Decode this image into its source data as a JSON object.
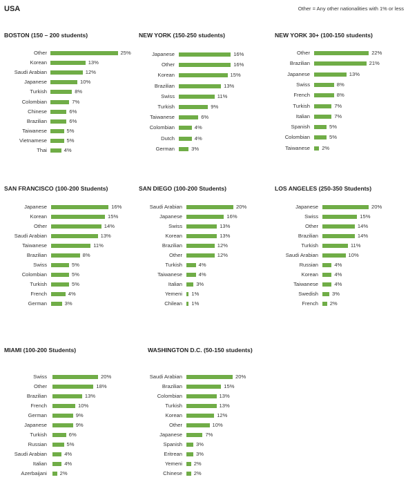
{
  "page": {
    "title": "USA",
    "note": "Other = Any other nationalities with 1% or less"
  },
  "chart_data": [
    {
      "type": "bar",
      "title": "BOSTON (150 – 200 students)",
      "categories": [
        "Other",
        "Korean",
        "Saudi Arabian",
        "Japanese",
        "Turkish",
        "Colombian",
        "Chinese",
        "Brazilian",
        "Taiwanese",
        "Vietnamese",
        "Thai"
      ],
      "values": [
        25,
        13,
        12,
        10,
        8,
        7,
        6,
        6,
        5,
        5,
        4
      ],
      "value_labels": [
        "25%",
        "13%",
        "12%",
        "10%",
        "8%",
        "7%",
        "6%",
        "6%",
        "5%",
        "5%",
        "4%"
      ],
      "orientation": "horizontal",
      "color": "#70ad47"
    },
    {
      "type": "bar",
      "title": "NEW YORK (150-250 students)",
      "categories": [
        "Japanese",
        "Other",
        "Korean",
        "Brazilian",
        "Swiss",
        "Turkish",
        "Taiwanese",
        "Colombian",
        "Dutch",
        "German"
      ],
      "values": [
        16,
        16,
        15,
        13,
        11,
        9,
        6,
        4,
        4,
        3
      ],
      "value_labels": [
        "16%",
        "16%",
        "15%",
        "13%",
        "11%",
        "9%",
        "6%",
        "4%",
        "4%",
        "3%"
      ],
      "orientation": "horizontal",
      "color": "#70ad47"
    },
    {
      "type": "bar",
      "title": "NEW YORK 30+ (100-150 students)",
      "categories": [
        "Other",
        "Brazilian",
        "Japanese",
        "Swiss",
        "French",
        "Turkish",
        "Italian",
        "Spanish",
        "Colombian",
        "Taiwanese"
      ],
      "values": [
        22,
        21,
        13,
        8,
        8,
        7,
        7,
        5,
        5,
        2
      ],
      "value_labels": [
        "22%",
        "21%",
        "13%",
        "8%",
        "8%",
        "7%",
        "7%",
        "5%",
        "5%",
        "2%"
      ],
      "orientation": "horizontal",
      "color": "#70ad47"
    },
    {
      "type": "bar",
      "title": "SAN FRANCISCO (100-200 Students)",
      "categories": [
        "Japanese",
        "Korean",
        "Other",
        "Saudi Arabian",
        "Taiwanese",
        "Brazilian",
        "Swiss",
        "Colombian",
        "Turkish",
        "French",
        "German"
      ],
      "values": [
        16,
        15,
        14,
        13,
        11,
        8,
        5,
        5,
        5,
        4,
        3
      ],
      "value_labels": [
        "16%",
        "15%",
        "14%",
        "13%",
        "11%",
        "8%",
        "5%",
        "5%",
        "5%",
        "4%",
        "3%"
      ],
      "orientation": "horizontal",
      "color": "#70ad47"
    },
    {
      "type": "bar",
      "title": "SAN DIEGO (100-200 Students)",
      "categories": [
        "Saudi Arabian",
        "Japanese",
        "Swiss",
        "Korean",
        "Brazilian",
        "Other",
        "Turkish",
        "Taiwanese",
        "Italian",
        "Yemeni",
        "Chilean"
      ],
      "values": [
        20,
        16,
        13,
        13,
        12,
        12,
        4,
        4,
        3,
        1,
        1
      ],
      "value_labels": [
        "20%",
        "16%",
        "13%",
        "13%",
        "12%",
        "12%",
        "4%",
        "4%",
        "3%",
        "1%",
        "1%"
      ],
      "orientation": "horizontal",
      "color": "#70ad47"
    },
    {
      "type": "bar",
      "title": "LOS ANGELES (250-350 Students)",
      "categories": [
        "Japanese",
        "Swiss",
        "Other",
        "Brazilian",
        "Turkish",
        "Saudi Arabian",
        "Russian",
        "Korean",
        "Taiwanese",
        "Swedish",
        "French"
      ],
      "values": [
        20,
        15,
        14,
        14,
        11,
        10,
        4,
        4,
        4,
        3,
        2
      ],
      "value_labels": [
        "20%",
        "15%",
        "14%",
        "14%",
        "11%",
        "10%",
        "4%",
        "4%",
        "4%",
        "3%",
        "2%"
      ],
      "orientation": "horizontal",
      "color": "#70ad47"
    },
    {
      "type": "bar",
      "title": "MIAMI (100-200 Students)",
      "categories": [
        "Swiss",
        "Other",
        "Brazilian",
        "French",
        "German",
        "Japanese",
        "Turkish",
        "Russian",
        "Saudi Arabian",
        "Italian",
        "Azerbaijani"
      ],
      "values": [
        20,
        18,
        13,
        10,
        9,
        9,
        6,
        5,
        4,
        4,
        2
      ],
      "value_labels": [
        "20%",
        "18%",
        "13%",
        "10%",
        "9%",
        "9%",
        "6%",
        "5%",
        "4%",
        "4%",
        "2%"
      ],
      "orientation": "horizontal",
      "color": "#70ad47"
    },
    {
      "type": "bar",
      "title": "WASHINGTON D.C. (50-150 students)",
      "categories": [
        "Saudi Arabian",
        "Brazilian",
        "Colombian",
        "Turkish",
        "Korean",
        "Other",
        "Japanese",
        "Spanish",
        "Eritrean",
        "Yemeni",
        "Chinese"
      ],
      "values": [
        20,
        15,
        13,
        13,
        12,
        10,
        7,
        3,
        3,
        2,
        2
      ],
      "value_labels": [
        "20%",
        "15%",
        "13%",
        "13%",
        "12%",
        "10%",
        "7%",
        "3%",
        "3%",
        "2%",
        "2%"
      ],
      "orientation": "horizontal",
      "color": "#70ad47"
    }
  ]
}
